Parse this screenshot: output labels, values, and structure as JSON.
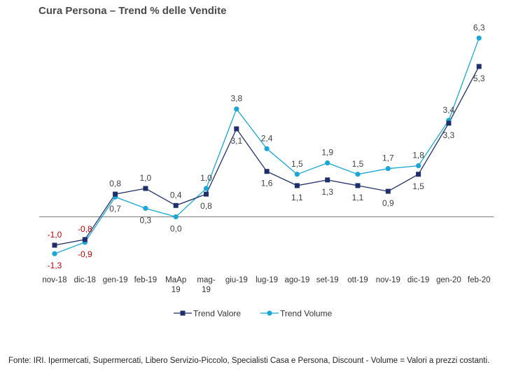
{
  "title": "Cura Persona – Trend % delle Vendite",
  "source": "Fonte: IRI. Ipermercati, Supermercati, Libero Servizio-Piccolo,  Specialisti Casa e Persona, Discount -  Volume =  Valori a prezzi  costanti.",
  "colors": {
    "trend_valore": "#1f2f6b",
    "trend_volume": "#1aa7d7",
    "negative_label": "#c00000",
    "label": "#404040",
    "axis": "#7f7f7f"
  },
  "chart_data": {
    "type": "line",
    "categories": [
      "nov-18",
      "dic-18",
      "gen-19",
      "feb-19",
      "MaAp 19",
      "mag-19",
      "giu-19",
      "lug-19",
      "ago-19",
      "set-19",
      "ott-19",
      "nov-19",
      "dic-19",
      "gen-20",
      "feb-20"
    ],
    "category_labels": [
      [
        "nov-18"
      ],
      [
        "dic-18"
      ],
      [
        "gen-19"
      ],
      [
        "feb-19"
      ],
      [
        "MaAp",
        "19"
      ],
      [
        "mag-",
        "19"
      ],
      [
        "giu-19"
      ],
      [
        "lug-19"
      ],
      [
        "ago-19"
      ],
      [
        "set-19"
      ],
      [
        "ott-19"
      ],
      [
        "nov-19"
      ],
      [
        "dic-19"
      ],
      [
        "gen-20"
      ],
      [
        "feb-20"
      ]
    ],
    "series": [
      {
        "name": "Trend Valore",
        "values": [
          -1.0,
          -0.8,
          0.8,
          1.0,
          0.4,
          0.8,
          3.1,
          1.6,
          1.1,
          1.3,
          1.1,
          0.9,
          1.5,
          3.3,
          5.3
        ],
        "labels": [
          "-1,0",
          "-0,8",
          "0,8",
          "1,0",
          "0,4",
          "0,8",
          "3,1",
          "1,6",
          "1,1",
          "1,3",
          "1,1",
          "0,9",
          "1,5",
          "3,3",
          "5,3"
        ],
        "marker": "square",
        "color": "#1f2f6b"
      },
      {
        "name": "Trend Volume",
        "values": [
          -1.3,
          -0.9,
          0.7,
          0.3,
          0.0,
          1.0,
          3.8,
          2.4,
          1.5,
          1.9,
          1.5,
          1.7,
          1.8,
          3.4,
          6.3
        ],
        "labels": [
          "-1,3",
          "-0,9",
          "0,7",
          "0,3",
          "0,0",
          "1,0",
          "3,8",
          "2,4",
          "1,5",
          "1,9",
          "1,5",
          "1,7",
          "1,8",
          "3,4",
          "6,3"
        ],
        "marker": "circle",
        "color": "#1aa7d7"
      }
    ],
    "ylim": [
      -2.0,
      7.0
    ],
    "grid": false,
    "legend": "bottom-center"
  }
}
